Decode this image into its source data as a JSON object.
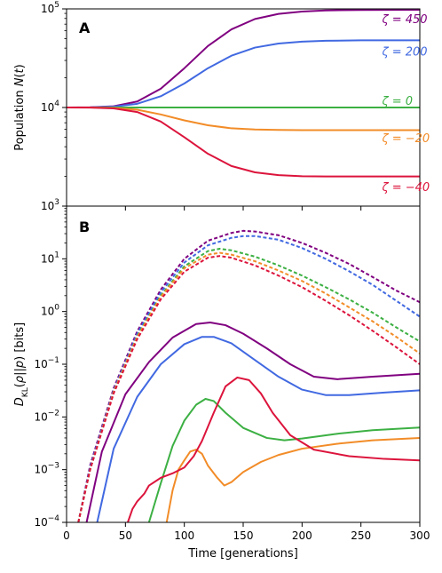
{
  "chart_data": [
    {
      "panel": "A",
      "type": "line",
      "ylabel_parts": [
        "Population ",
        "N",
        "(",
        "t",
        ")"
      ],
      "yscale": "log",
      "xlim": [
        0,
        300
      ],
      "ylim": [
        1000,
        100000
      ],
      "yticks": [
        {
          "value": 100000,
          "base": "10",
          "exp": "5"
        },
        {
          "value": 10000,
          "base": "10",
          "exp": "4"
        },
        {
          "value": 1000,
          "base": "10",
          "exp": "3"
        }
      ],
      "series": [
        {
          "name": "ζ = 450",
          "label_x": 268,
          "label_y": 78000,
          "color": "#800080",
          "style": "solid",
          "points": [
            [
              0,
              10000
            ],
            [
              20,
              10050
            ],
            [
              40,
              10300
            ],
            [
              60,
              11500
            ],
            [
              80,
              15500
            ],
            [
              100,
              25000
            ],
            [
              120,
              42000
            ],
            [
              140,
              62000
            ],
            [
              160,
              79000
            ],
            [
              180,
              89000
            ],
            [
              200,
              94000
            ],
            [
              220,
              96500
            ],
            [
              250,
              97500
            ],
            [
              300,
              98000
            ]
          ]
        },
        {
          "name": "ζ = 200",
          "label_x": 268,
          "label_y": 36500,
          "color": "#4169e1",
          "style": "solid",
          "points": [
            [
              0,
              10000
            ],
            [
              20,
              10030
            ],
            [
              40,
              10200
            ],
            [
              60,
              10900
            ],
            [
              80,
              13000
            ],
            [
              100,
              17500
            ],
            [
              120,
              25000
            ],
            [
              140,
              33500
            ],
            [
              160,
              40500
            ],
            [
              180,
              44500
            ],
            [
              200,
              46500
            ],
            [
              220,
              47500
            ],
            [
              250,
              48000
            ],
            [
              300,
              48000
            ]
          ]
        },
        {
          "name": "ζ = 0",
          "label_x": 268,
          "label_y": 11600,
          "color": "#3cb043",
          "style": "solid",
          "points": [
            [
              0,
              10000
            ],
            [
              300,
              10000
            ]
          ]
        },
        {
          "name": "ζ = −20",
          "label_x": 268,
          "label_y": 4850,
          "color": "#f28c28",
          "style": "solid",
          "points": [
            [
              0,
              10000
            ],
            [
              20,
              9990
            ],
            [
              40,
              9900
            ],
            [
              60,
              9500
            ],
            [
              80,
              8500
            ],
            [
              100,
              7400
            ],
            [
              120,
              6600
            ],
            [
              140,
              6150
            ],
            [
              160,
              5980
            ],
            [
              180,
              5920
            ],
            [
              200,
              5900
            ],
            [
              300,
              5900
            ]
          ]
        },
        {
          "name": "ζ = −40",
          "label_x": 268,
          "label_y": 1550,
          "color": "#dc143c",
          "style": "solid",
          "points": [
            [
              0,
              10000
            ],
            [
              20,
              9970
            ],
            [
              40,
              9800
            ],
            [
              60,
              9000
            ],
            [
              80,
              7200
            ],
            [
              100,
              5000
            ],
            [
              120,
              3400
            ],
            [
              140,
              2550
            ],
            [
              160,
              2200
            ],
            [
              180,
              2060
            ],
            [
              200,
              2010
            ],
            [
              220,
              2000
            ],
            [
              300,
              2000
            ]
          ]
        }
      ]
    },
    {
      "panel": "B",
      "type": "line",
      "xlabel": "Time [generations]",
      "ylabel_parts": [
        "D",
        "KL",
        "(",
        "ρ",
        "||",
        "p",
        ") [bits]"
      ],
      "yscale": "log",
      "xlim": [
        0,
        300
      ],
      "ylim": [
        0.0001,
        100
      ],
      "xticks": [
        "0",
        "50",
        "100",
        "150",
        "200",
        "250",
        "300"
      ],
      "yticks": [
        {
          "value": 10,
          "base": "10",
          "exp": "1"
        },
        {
          "value": 1,
          "base": "10",
          "exp": "0"
        },
        {
          "value": 0.1,
          "base": "10",
          "exp": "−1"
        },
        {
          "value": 0.01,
          "base": "10",
          "exp": "−2"
        },
        {
          "value": 0.001,
          "base": "10",
          "exp": "−3"
        },
        {
          "value": 0.0001,
          "base": "10",
          "exp": "−4"
        }
      ],
      "series": [
        {
          "color": "#800080",
          "style": "dashed",
          "points": [
            [
              10,
              0.0001
            ],
            [
              20,
              0.0012
            ],
            [
              40,
              0.035
            ],
            [
              60,
              0.42
            ],
            [
              80,
              2.6
            ],
            [
              100,
              10
            ],
            [
              120,
              22
            ],
            [
              140,
              31
            ],
            [
              150,
              34
            ],
            [
              160,
              33
            ],
            [
              180,
              28
            ],
            [
              200,
              20
            ],
            [
              220,
              13
            ],
            [
              240,
              8
            ],
            [
              260,
              4.5
            ],
            [
              280,
              2.5
            ],
            [
              300,
              1.5
            ]
          ]
        },
        {
          "color": "#4169e1",
          "style": "dashed",
          "points": [
            [
              10,
              0.0001
            ],
            [
              20,
              0.0011
            ],
            [
              40,
              0.032
            ],
            [
              60,
              0.38
            ],
            [
              80,
              2.3
            ],
            [
              100,
              8.5
            ],
            [
              120,
              18
            ],
            [
              140,
              25
            ],
            [
              150,
              27
            ],
            [
              160,
              27
            ],
            [
              180,
              23
            ],
            [
              200,
              16
            ],
            [
              220,
              10
            ],
            [
              240,
              5.8
            ],
            [
              260,
              3.2
            ],
            [
              280,
              1.6
            ],
            [
              300,
              0.8
            ]
          ]
        },
        {
          "color": "#3cb043",
          "style": "dashed",
          "points": [
            [
              10,
              0.0001
            ],
            [
              20,
              0.001
            ],
            [
              40,
              0.03
            ],
            [
              60,
              0.34
            ],
            [
              80,
              2
            ],
            [
              100,
              7.2
            ],
            [
              120,
              14
            ],
            [
              130,
              15.5
            ],
            [
              140,
              14.5
            ],
            [
              160,
              11
            ],
            [
              180,
              7.5
            ],
            [
              200,
              4.8
            ],
            [
              220,
              2.9
            ],
            [
              240,
              1.7
            ],
            [
              260,
              0.95
            ],
            [
              280,
              0.5
            ],
            [
              300,
              0.27
            ]
          ]
        },
        {
          "color": "#f28c28",
          "style": "dashed",
          "points": [
            [
              10,
              0.0001
            ],
            [
              20,
              0.001
            ],
            [
              40,
              0.03
            ],
            [
              60,
              0.33
            ],
            [
              80,
              1.9
            ],
            [
              100,
              6.6
            ],
            [
              120,
              12
            ],
            [
              130,
              13
            ],
            [
              140,
              12
            ],
            [
              160,
              9
            ],
            [
              180,
              6
            ],
            [
              200,
              3.8
            ],
            [
              220,
              2.2
            ],
            [
              240,
              1.2
            ],
            [
              260,
              0.65
            ],
            [
              280,
              0.33
            ],
            [
              300,
              0.16
            ]
          ]
        },
        {
          "color": "#dc143c",
          "style": "dashed",
          "points": [
            [
              10,
              0.0001
            ],
            [
              20,
              0.001
            ],
            [
              40,
              0.028
            ],
            [
              60,
              0.3
            ],
            [
              80,
              1.7
            ],
            [
              100,
              5.7
            ],
            [
              120,
              10.5
            ],
            [
              130,
              11.3
            ],
            [
              140,
              10.5
            ],
            [
              160,
              7.5
            ],
            [
              180,
              4.8
            ],
            [
              200,
              2.9
            ],
            [
              220,
              1.6
            ],
            [
              240,
              0.85
            ],
            [
              260,
              0.43
            ],
            [
              280,
              0.21
            ],
            [
              300,
              0.1
            ]
          ]
        },
        {
          "color": "#800080",
          "style": "solid",
          "points": [
            [
              17,
              0.0001
            ],
            [
              30,
              0.0022
            ],
            [
              50,
              0.027
            ],
            [
              70,
              0.11
            ],
            [
              90,
              0.32
            ],
            [
              110,
              0.58
            ],
            [
              122,
              0.62
            ],
            [
              135,
              0.55
            ],
            [
              150,
              0.38
            ],
            [
              170,
              0.2
            ],
            [
              190,
              0.1
            ],
            [
              210,
              0.058
            ],
            [
              230,
              0.052
            ],
            [
              260,
              0.058
            ],
            [
              300,
              0.066
            ]
          ]
        },
        {
          "color": "#4169e1",
          "style": "solid",
          "points": [
            [
              26,
              0.0001
            ],
            [
              40,
              0.0025
            ],
            [
              60,
              0.024
            ],
            [
              80,
              0.1
            ],
            [
              100,
              0.24
            ],
            [
              115,
              0.33
            ],
            [
              125,
              0.33
            ],
            [
              140,
              0.25
            ],
            [
              160,
              0.12
            ],
            [
              180,
              0.058
            ],
            [
              200,
              0.033
            ],
            [
              220,
              0.026
            ],
            [
              240,
              0.026
            ],
            [
              270,
              0.029
            ],
            [
              300,
              0.032
            ]
          ]
        },
        {
          "color": "#3cb043",
          "style": "solid",
          "points": [
            [
              70,
              0.0001
            ],
            [
              80,
              0.00055
            ],
            [
              90,
              0.0028
            ],
            [
              100,
              0.0085
            ],
            [
              110,
              0.017
            ],
            [
              118,
              0.022
            ],
            [
              125,
              0.02
            ],
            [
              135,
              0.012
            ],
            [
              150,
              0.0062
            ],
            [
              170,
              0.004
            ],
            [
              185,
              0.0036
            ],
            [
              200,
              0.0039
            ],
            [
              230,
              0.0048
            ],
            [
              260,
              0.0056
            ],
            [
              300,
              0.0063
            ]
          ]
        },
        {
          "color": "#f28c28",
          "style": "solid",
          "points": [
            [
              85,
              0.0001
            ],
            [
              90,
              0.0004
            ],
            [
              95,
              0.001
            ],
            [
              100,
              0.0015
            ],
            [
              105,
              0.0022
            ],
            [
              110,
              0.0024
            ],
            [
              115,
              0.002
            ],
            [
              120,
              0.0012
            ],
            [
              128,
              0.0007
            ],
            [
              134,
              0.0005
            ],
            [
              140,
              0.00058
            ],
            [
              150,
              0.0009
            ],
            [
              165,
              0.0014
            ],
            [
              180,
              0.0019
            ],
            [
              200,
              0.0025
            ],
            [
              230,
              0.0031
            ],
            [
              260,
              0.0036
            ],
            [
              300,
              0.004
            ]
          ]
        },
        {
          "color": "#dc143c",
          "style": "solid",
          "points": [
            [
              52,
              0.0001
            ],
            [
              56,
              0.00018
            ],
            [
              60,
              0.00025
            ],
            [
              66,
              0.00035
            ],
            [
              70,
              0.0005
            ],
            [
              80,
              0.0007
            ],
            [
              90,
              0.00085
            ],
            [
              100,
              0.0011
            ],
            [
              108,
              0.0018
            ],
            [
              115,
              0.0035
            ],
            [
              125,
              0.012
            ],
            [
              135,
              0.038
            ],
            [
              145,
              0.056
            ],
            [
              155,
              0.05
            ],
            [
              165,
              0.028
            ],
            [
              175,
              0.012
            ],
            [
              190,
              0.0045
            ],
            [
              210,
              0.0024
            ],
            [
              240,
              0.0018
            ],
            [
              270,
              0.0016
            ],
            [
              300,
              0.0015
            ]
          ]
        }
      ]
    }
  ]
}
